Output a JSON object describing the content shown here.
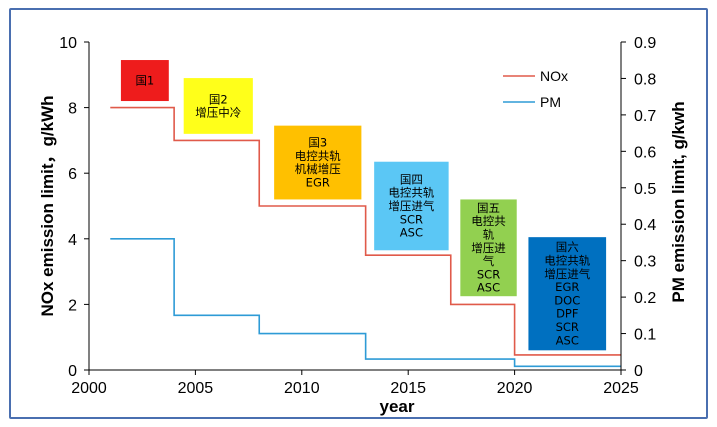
{
  "chart_data": {
    "type": "line",
    "subtype": "step",
    "x_axis": {
      "label": "year",
      "min": 2000,
      "max": 2025,
      "ticks": [
        2000,
        2005,
        2010,
        2015,
        2020,
        2025
      ]
    },
    "y_left": {
      "label": "NOx emission limit，g/kWh",
      "min": 0,
      "max": 10,
      "ticks": [
        0,
        2,
        4,
        6,
        8,
        10
      ]
    },
    "y_right": {
      "label": "PM emission limit, g/kwh",
      "min": 0,
      "max": 0.9,
      "ticks": [
        "0",
        "0.1",
        "0.2",
        "0.3",
        "0.4",
        "0.5",
        "0.6",
        "0.7",
        "0.8",
        "0.9"
      ]
    },
    "legend": {
      "position": "top-right",
      "entries": [
        "NOx",
        "PM"
      ]
    },
    "series": [
      {
        "name": "NOx",
        "axis": "left",
        "color": "#e05a4a",
        "points": [
          [
            2001,
            8.0
          ],
          [
            2004,
            8.0
          ],
          [
            2004,
            7.0
          ],
          [
            2008,
            7.0
          ],
          [
            2008,
            5.0
          ],
          [
            2013,
            5.0
          ],
          [
            2013,
            3.5
          ],
          [
            2017,
            3.5
          ],
          [
            2017,
            2.0
          ],
          [
            2020,
            2.0
          ],
          [
            2020,
            0.46
          ],
          [
            2025,
            0.46
          ]
        ]
      },
      {
        "name": "PM",
        "axis": "right",
        "color": "#2e9bd6",
        "points": [
          [
            2001,
            0.36
          ],
          [
            2004,
            0.36
          ],
          [
            2004,
            0.15
          ],
          [
            2008,
            0.15
          ],
          [
            2008,
            0.1
          ],
          [
            2013,
            0.1
          ],
          [
            2013,
            0.03
          ],
          [
            2020,
            0.03
          ],
          [
            2020,
            0.01
          ],
          [
            2025,
            0.01
          ]
        ]
      }
    ],
    "annotations": [
      {
        "name": "stage-1",
        "color": "#ee1c1c",
        "x0": 2001.5,
        "x1": 2003.75,
        "y_top": 9.45,
        "y_bottom": 8.2,
        "lines": [
          "国1"
        ]
      },
      {
        "name": "stage-2",
        "color": "#ffff1a",
        "x0": 2004.45,
        "x1": 2007.7,
        "y_top": 8.9,
        "y_bottom": 7.2,
        "lines": [
          "国2",
          "增压中冷"
        ]
      },
      {
        "name": "stage-3",
        "color": "#ffc000",
        "x0": 2008.7,
        "x1": 2012.8,
        "y_top": 7.45,
        "y_bottom": 5.2,
        "lines": [
          "国3",
          "电控共轨",
          "机械增压",
          "EGR"
        ]
      },
      {
        "name": "stage-4",
        "color": "#5bc7f5",
        "x0": 2013.4,
        "x1": 2016.9,
        "y_top": 6.35,
        "y_bottom": 3.65,
        "lines": [
          "国四",
          "电控共轨",
          "增压进气",
          "SCR",
          "ASC"
        ]
      },
      {
        "name": "stage-5",
        "color": "#92d050",
        "x0": 2017.45,
        "x1": 2020.1,
        "y_top": 5.2,
        "y_bottom": 2.25,
        "lines": [
          "国五",
          "电控共",
          "轨",
          "增压进",
          "气",
          "SCR",
          "ASC"
        ]
      },
      {
        "name": "stage-6",
        "color": "#0070c0",
        "x0": 2020.65,
        "x1": 2024.3,
        "y_top": 4.05,
        "y_bottom": 0.6,
        "lines": [
          "国六",
          "电控共轨",
          "增压进气",
          "EGR",
          "DOC",
          "DPF",
          "SCR",
          "ASC"
        ]
      }
    ]
  }
}
